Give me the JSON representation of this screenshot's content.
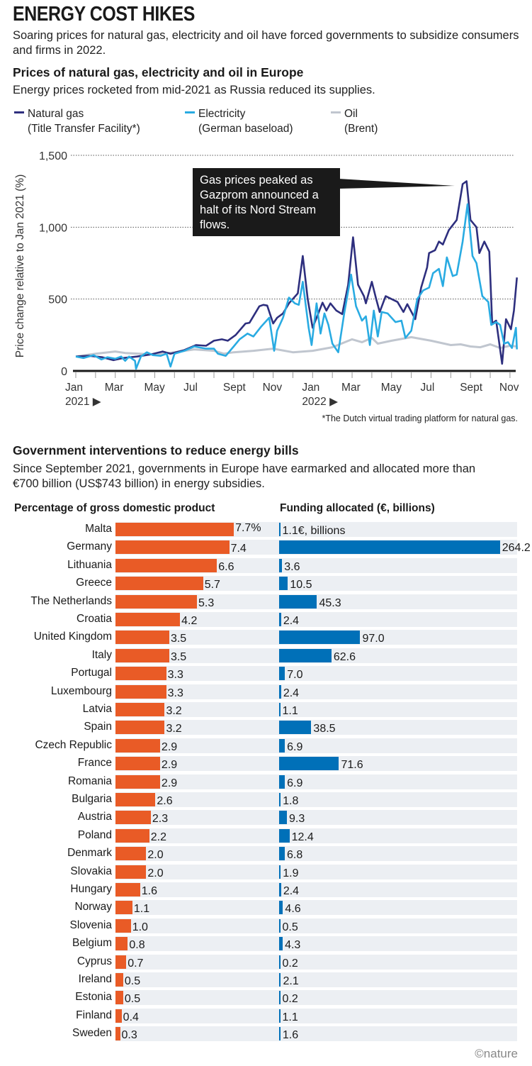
{
  "title": "ENERGY COST HIKES",
  "subtitle": "Soaring prices for natural gas, electricity and oil have forced governments to subsidize consumers and firms in 2022.",
  "chart_data": [
    {
      "type": "line",
      "title": "Prices of natural gas, electricity and oil in Europe",
      "subtitle": "Energy prices rocketed from mid-2021 as Russia reduced its supplies.",
      "ylabel": "Price change relative to Jan 2021 (%)",
      "ylim": [
        0,
        1500
      ],
      "yticks": [
        "0",
        "500",
        "1,000",
        "1,500"
      ],
      "ytick_values": [
        0,
        500,
        1000,
        1500
      ],
      "xunit": "months since Jan 2021",
      "xticks": [
        "Jan",
        "Mar",
        "May",
        "Jul",
        "Sept",
        "Nov",
        "Jan",
        "Mar",
        "May",
        "Jul",
        "Sept",
        "Nov"
      ],
      "xtick_values": [
        0,
        2,
        4,
        6,
        8,
        10,
        12,
        14,
        16,
        18,
        20,
        22
      ],
      "year_labels": [
        "2021 ▶",
        "2022 ▶"
      ],
      "annotation": "Gas prices peaked as Gazprom announced a halt of its Nord Stream flows.",
      "footnote": "*The Dutch virtual trading platform for natural gas.",
      "series": [
        {
          "name": "Natural gas",
          "sub": "(Title Transfer Facility*)",
          "color": "#2e2f7e",
          "x": [
            0,
            0.66,
            1.35,
            1.9,
            2.4,
            3.1,
            3.8,
            4.4,
            4.8,
            5.5,
            6.1,
            6.6,
            7,
            7.4,
            7.7,
            8.1,
            8.6,
            8.8,
            9.3,
            9.5,
            9.7,
            10,
            10.2,
            10.5,
            10.8,
            11.25,
            11.5,
            11.75,
            12,
            12.5,
            12.7,
            12.9,
            13.2,
            13.5,
            13.8,
            14.05,
            14.3,
            14.6,
            14.7,
            15,
            15.2,
            15.4,
            15.7,
            16,
            16.3,
            16.6,
            16.8,
            17.2,
            17.5,
            17.8,
            17.9,
            18.2,
            18.4,
            18.6,
            18.9,
            19.3,
            19.6,
            19.8,
            20,
            20.3,
            20.45,
            20.7,
            20.95,
            21.1,
            21.3,
            21.6,
            21.8,
            22.05,
            22.2,
            22.35
          ],
          "y": [
            100,
            105,
            95,
            75,
            90,
            100,
            115,
            135,
            120,
            145,
            180,
            175,
            210,
            220,
            210,
            250,
            330,
            335,
            450,
            460,
            455,
            330,
            370,
            400,
            470,
            540,
            800,
            500,
            300,
            475,
            420,
            470,
            420,
            395,
            600,
            930,
            600,
            520,
            470,
            620,
            510,
            410,
            520,
            500,
            480,
            410,
            465,
            360,
            580,
            720,
            820,
            840,
            900,
            880,
            980,
            1050,
            1300,
            1320,
            1050,
            1000,
            820,
            900,
            830,
            330,
            350,
            50,
            360,
            290,
            420,
            650
          ]
        },
        {
          "name": "Electricity",
          "sub": "(German baseload)",
          "color": "#29abe2",
          "x": [
            0,
            0.4,
            0.9,
            1.3,
            1.6,
            2,
            2.3,
            2.5,
            2.7,
            3.0,
            3.05,
            3.3,
            3.6,
            3.9,
            4.3,
            4.6,
            4.8,
            5,
            5.5,
            6,
            6.6,
            7,
            7.2,
            7.6,
            8,
            8.3,
            8.7,
            9,
            9.4,
            9.8,
            10.05,
            10.2,
            10.5,
            10.8,
            11.1,
            11.3,
            11.5,
            11.8,
            11.95,
            12.2,
            12.4,
            12.6,
            12.8,
            13,
            13.3,
            13.6,
            13.95,
            14.2,
            14.5,
            14.7,
            14.9,
            15.1,
            15.3,
            15.5,
            15.8,
            16.2,
            16.5,
            16.7,
            17,
            17.3,
            17.6,
            17.9,
            18.1,
            18.4,
            18.6,
            18.8,
            19.1,
            19.3,
            19.6,
            19.85,
            20.1,
            20.3,
            20.6,
            20.9,
            21.05,
            21.3,
            21.5,
            21.7,
            21.9,
            22.1,
            22.3,
            22.35
          ],
          "y": [
            100,
            90,
            110,
            80,
            95,
            85,
            100,
            70,
            100,
            70,
            15,
            100,
            130,
            110,
            105,
            120,
            30,
            120,
            140,
            170,
            155,
            155,
            120,
            105,
            170,
            220,
            260,
            240,
            310,
            370,
            140,
            280,
            370,
            510,
            470,
            460,
            620,
            300,
            180,
            470,
            260,
            400,
            320,
            190,
            130,
            400,
            670,
            450,
            350,
            380,
            180,
            420,
            240,
            410,
            400,
            340,
            350,
            230,
            280,
            500,
            560,
            580,
            680,
            710,
            590,
            790,
            660,
            670,
            900,
            1160,
            800,
            750,
            520,
            480,
            320,
            340,
            320,
            190,
            200,
            160,
            300,
            150
          ]
        },
        {
          "name": "Oil",
          "sub": "(Brent)",
          "color": "#c0c6cf",
          "x": [
            0,
            1,
            2,
            2.5,
            4,
            5,
            6,
            7,
            7.5,
            8,
            9,
            10,
            11,
            12,
            13,
            14,
            14.5,
            15,
            15.3,
            16,
            17,
            18,
            19,
            19.5,
            20,
            20.5,
            21,
            21.5,
            22,
            22.35
          ],
          "y": [
            100,
            120,
            135,
            125,
            115,
            130,
            150,
            140,
            120,
            130,
            140,
            155,
            130,
            140,
            165,
            220,
            200,
            230,
            190,
            210,
            235,
            210,
            180,
            185,
            170,
            165,
            185,
            160,
            175,
            170
          ]
        }
      ]
    },
    {
      "type": "bar",
      "title": "Government interventions to reduce energy bills",
      "subtitle": "Since September 2021, governments in Europe have earmarked and allocated more than €700 billion (US$743 billion) in energy subsidies.",
      "left_header": "Percentage of gross domestic product",
      "right_header": "Funding allocated (€, billions)",
      "orange": "#e95b26",
      "blue": "#0070b8",
      "rows": [
        {
          "country": "Malta",
          "gdp": 7.7,
          "gdp_label": "7.7%",
          "funding": 1.1,
          "funding_label": "1.1€, billions"
        },
        {
          "country": "Germany",
          "gdp": 7.4,
          "gdp_label": "7.4",
          "funding": 264.2,
          "funding_label": "264.2"
        },
        {
          "country": "Lithuania",
          "gdp": 6.6,
          "gdp_label": "6.6",
          "funding": 3.6,
          "funding_label": "3.6"
        },
        {
          "country": "Greece",
          "gdp": 5.7,
          "gdp_label": "5.7",
          "funding": 10.5,
          "funding_label": "10.5"
        },
        {
          "country": "The Netherlands",
          "gdp": 5.3,
          "gdp_label": "5.3",
          "funding": 45.3,
          "funding_label": "45.3"
        },
        {
          "country": "Croatia",
          "gdp": 4.2,
          "gdp_label": "4.2",
          "funding": 2.4,
          "funding_label": "2.4"
        },
        {
          "country": "United Kingdom",
          "gdp": 3.5,
          "gdp_label": "3.5",
          "funding": 97.0,
          "funding_label": "97.0"
        },
        {
          "country": "Italy",
          "gdp": 3.5,
          "gdp_label": "3.5",
          "funding": 62.6,
          "funding_label": "62.6"
        },
        {
          "country": "Portugal",
          "gdp": 3.3,
          "gdp_label": "3.3",
          "funding": 7.0,
          "funding_label": "7.0"
        },
        {
          "country": "Luxembourg",
          "gdp": 3.3,
          "gdp_label": "3.3",
          "funding": 2.4,
          "funding_label": "2.4"
        },
        {
          "country": "Latvia",
          "gdp": 3.2,
          "gdp_label": "3.2",
          "funding": 1.1,
          "funding_label": "1.1"
        },
        {
          "country": "Spain",
          "gdp": 3.2,
          "gdp_label": "3.2",
          "funding": 38.5,
          "funding_label": "38.5"
        },
        {
          "country": "Czech Republic",
          "gdp": 2.9,
          "gdp_label": "2.9",
          "funding": 6.9,
          "funding_label": "6.9"
        },
        {
          "country": "France",
          "gdp": 2.9,
          "gdp_label": "2.9",
          "funding": 71.6,
          "funding_label": "71.6"
        },
        {
          "country": "Romania",
          "gdp": 2.9,
          "gdp_label": "2.9",
          "funding": 6.9,
          "funding_label": "6.9"
        },
        {
          "country": "Bulgaria",
          "gdp": 2.6,
          "gdp_label": "2.6",
          "funding": 1.8,
          "funding_label": "1.8"
        },
        {
          "country": "Austria",
          "gdp": 2.3,
          "gdp_label": "2.3",
          "funding": 9.3,
          "funding_label": "9.3"
        },
        {
          "country": "Poland",
          "gdp": 2.2,
          "gdp_label": "2.2",
          "funding": 12.4,
          "funding_label": "12.4"
        },
        {
          "country": "Denmark",
          "gdp": 2.0,
          "gdp_label": "2.0",
          "funding": 6.8,
          "funding_label": "6.8"
        },
        {
          "country": "Slovakia",
          "gdp": 2.0,
          "gdp_label": "2.0",
          "funding": 1.9,
          "funding_label": "1.9"
        },
        {
          "country": "Hungary",
          "gdp": 1.6,
          "gdp_label": "1.6",
          "funding": 2.4,
          "funding_label": "2.4"
        },
        {
          "country": "Norway",
          "gdp": 1.1,
          "gdp_label": "1.1",
          "funding": 4.6,
          "funding_label": "4.6"
        },
        {
          "country": "Slovenia",
          "gdp": 1.0,
          "gdp_label": "1.0",
          "funding": 0.5,
          "funding_label": "0.5"
        },
        {
          "country": "Belgium",
          "gdp": 0.8,
          "gdp_label": "0.8",
          "funding": 4.3,
          "funding_label": "4.3"
        },
        {
          "country": "Cyprus",
          "gdp": 0.7,
          "gdp_label": "0.7",
          "funding": 0.2,
          "funding_label": "0.2"
        },
        {
          "country": "Ireland",
          "gdp": 0.5,
          "gdp_label": "0.5",
          "funding": 2.1,
          "funding_label": "2.1"
        },
        {
          "country": "Estonia",
          "gdp": 0.5,
          "gdp_label": "0.5",
          "funding": 0.2,
          "funding_label": "0.2"
        },
        {
          "country": "Finland",
          "gdp": 0.4,
          "gdp_label": "0.4",
          "funding": 1.1,
          "funding_label": "1.1"
        },
        {
          "country": "Sweden",
          "gdp": 0.3,
          "gdp_label": "0.3",
          "funding": 1.6,
          "funding_label": "1.6"
        }
      ]
    }
  ],
  "logo": "©nature"
}
